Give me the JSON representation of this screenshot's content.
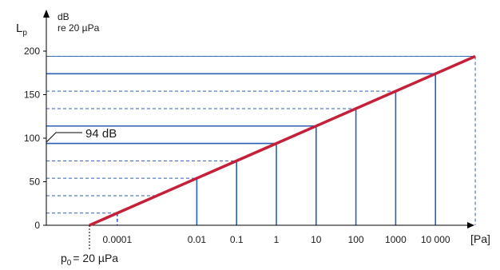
{
  "chart_data": {
    "type": "line",
    "title": "",
    "xlabel": "[Pa]",
    "ylabel": "L",
    "ylabel_sub": "p",
    "yunit_line1": "dB",
    "yunit_line2": "re 20 µPa",
    "x_scale": "log10",
    "x_tick_labels": [
      "0.0001",
      "0.01",
      "0.1",
      "1",
      "10",
      "100",
      "1000",
      "10 000"
    ],
    "x_tick_values": [
      0.0001,
      0.01,
      0.1,
      1,
      10,
      100,
      1000,
      10000
    ],
    "x_range_label": [
      2e-05,
      100000
    ],
    "y_ticks": [
      0,
      50,
      100,
      150,
      200
    ],
    "ylim": [
      0,
      200
    ],
    "series": [
      {
        "x": [
          2e-05,
          100000
        ],
        "y": [
          0,
          194
        ],
        "color": "#c4203a"
      }
    ],
    "dashed_levels_db": [
      14,
      34,
      54,
      74,
      94,
      114,
      134,
      154,
      174,
      194
    ],
    "solid_levels_db": [
      94,
      114,
      174
    ],
    "annotation_94": "94 dB",
    "reference_label": "p",
    "reference_sub": "0",
    "reference_rest": "= 20 µPa",
    "colors": {
      "line": "#c4203a",
      "guide": "#2b5fb3",
      "axis": "#000000"
    },
    "grid": false
  }
}
